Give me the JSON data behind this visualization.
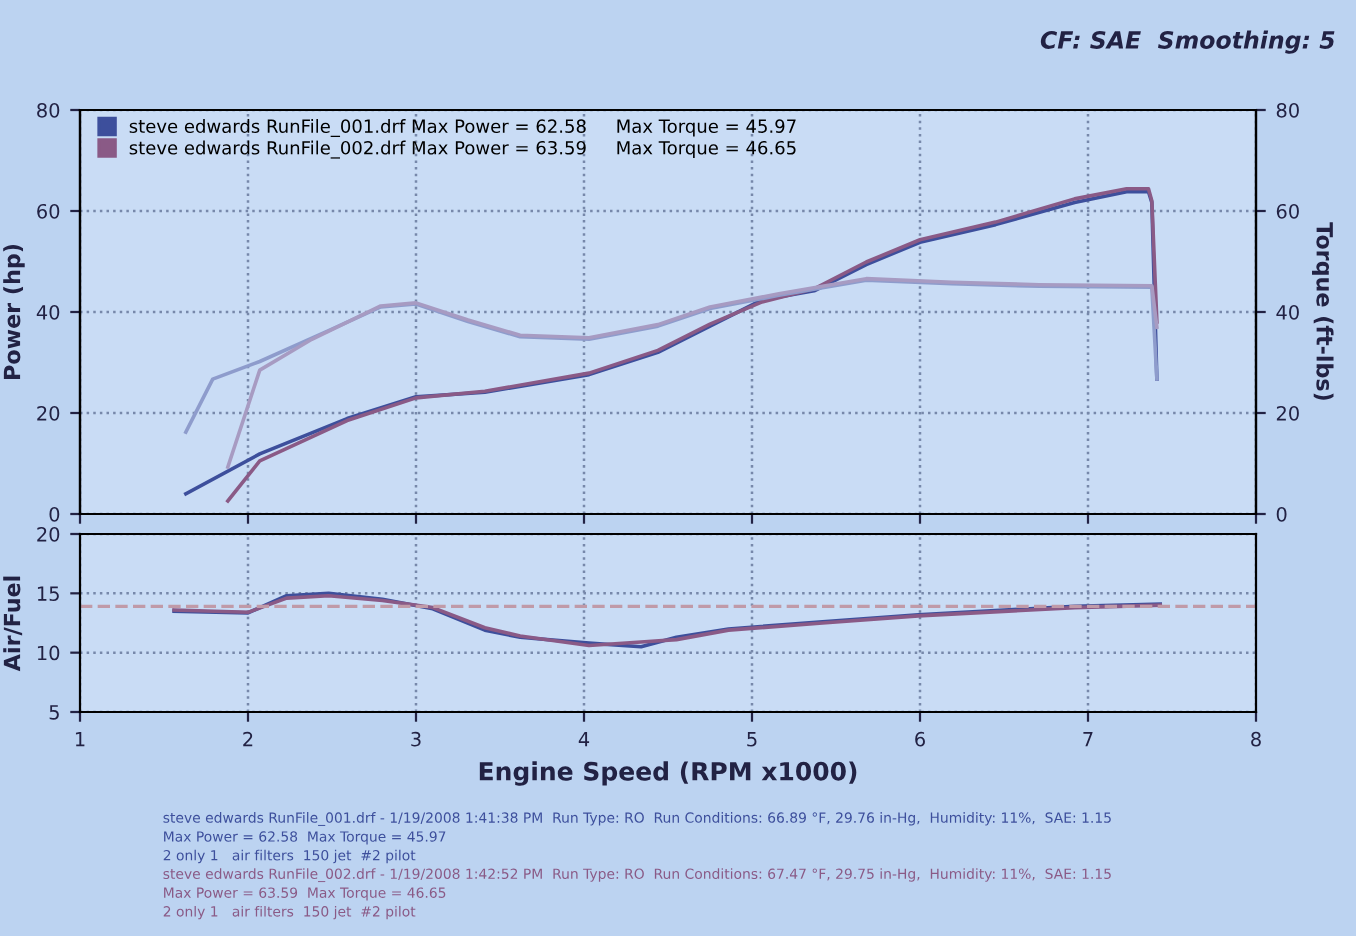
{
  "chart_data": [
    {
      "type": "line",
      "annotations": [
        "CF: SAE  Smoothing: 5"
      ],
      "ylabel": "Power (hp)",
      "y2label": "Torque (ft-lbs)",
      "xlim": [
        1,
        8
      ],
      "xticks": [
        1,
        2,
        3,
        4,
        5,
        6,
        7,
        8
      ],
      "ylim": [
        0,
        80
      ],
      "yticks": [
        0,
        20,
        40,
        60,
        80
      ],
      "y2lim": [
        0,
        80
      ],
      "y2ticks": [
        0,
        20,
        40,
        60,
        80
      ],
      "tick_labels": "y",
      "grid": true,
      "legend": "top left",
      "series": [
        {
          "name": "steve edwards RunFile_001.drf Max Power = 62.58     Max Torque = 45.97",
          "color": "#3d4f9c",
          "x": [
            1.63,
            2.07,
            2.59,
            3.0,
            3.41,
            4.03,
            4.44,
            4.75,
            5.06,
            5.37,
            5.68,
            6.0,
            6.45,
            6.92,
            7.23,
            7.36,
            7.38,
            7.41
          ],
          "values": [
            4.0,
            11.9,
            18.9,
            23.2,
            24.1,
            27.6,
            32.0,
            37.2,
            42.4,
            44.2,
            49.4,
            53.8,
            57.3,
            61.7,
            63.8,
            63.8,
            61.7,
            26.7
          ]
        },
        {
          "name": "steve edwards RunFile_002.drf Max Power = 63.59     Max Torque = 46.65",
          "color": "#8a5a86",
          "x": [
            1.88,
            2.07,
            2.59,
            3.0,
            3.41,
            4.03,
            4.44,
            4.75,
            5.06,
            5.37,
            5.68,
            6.0,
            6.45,
            6.92,
            7.23,
            7.36,
            7.38,
            7.41
          ],
          "values": [
            2.6,
            10.5,
            18.5,
            23.0,
            24.3,
            27.9,
            32.4,
            37.6,
            42.0,
            44.6,
            49.9,
            54.3,
            57.8,
            62.4,
            64.4,
            64.4,
            62.0,
            38.0
          ]
        },
        {
          "axis": "y2",
          "color": "#8e9ccc",
          "x": [
            1.63,
            1.79,
            2.07,
            2.48,
            2.79,
            3.0,
            3.31,
            3.62,
            4.03,
            4.44,
            4.75,
            5.16,
            5.68,
            6.19,
            6.71,
            7.38,
            7.41
          ],
          "values": [
            16.2,
            26.7,
            30.2,
            36.3,
            41.0,
            41.6,
            38.1,
            35.1,
            34.6,
            37.2,
            40.7,
            43.3,
            46.3,
            45.6,
            45.1,
            44.9,
            26.7
          ]
        },
        {
          "axis": "y2",
          "color": "#a79bc2",
          "x": [
            1.88,
            2.07,
            2.38,
            2.79,
            3.0,
            3.31,
            3.62,
            4.03,
            4.44,
            4.75,
            5.16,
            5.68,
            6.19,
            6.71,
            7.38,
            7.41
          ],
          "values": [
            9.3,
            28.5,
            34.6,
            41.2,
            41.8,
            38.4,
            35.4,
            34.9,
            37.5,
            41.0,
            43.6,
            46.6,
            45.9,
            45.4,
            45.2,
            37.0
          ]
        }
      ]
    },
    {
      "type": "line",
      "xlabel": "Engine Speed (RPM x1000)",
      "ylabel": "Air/Fuel",
      "xlim": [
        1,
        8
      ],
      "xticks": [
        1,
        2,
        3,
        4,
        5,
        6,
        7,
        8
      ],
      "ylim": [
        5,
        20
      ],
      "yticks": [
        5,
        10,
        15,
        20
      ],
      "grid": true,
      "ref_lines": [
        {
          "axis": "y",
          "value": 13.9,
          "color": "#c09aa8",
          "line_style": "dashed"
        }
      ],
      "annotations": [
        "steve edwards RunFile_001.drf - 1/19/2008 1:41:38 PM  Run Type: RO  Run Conditions: 66.89 °F, 29.76 in-Hg,  Humidity: 11%,  SAE: 1.15",
        "Max Power = 62.58  Max Torque = 45.97",
        "2 only 1   air filters  150 jet  #2 pilot",
        "steve edwards RunFile_002.drf - 1/19/2008 1:42:52 PM  Run Type: RO  Run Conditions: 67.47 °F, 29.75 in-Hg,  Humidity: 11%,  SAE: 1.15",
        "Max Power = 63.59  Max Torque = 46.65",
        "2 only 1   air filters  150 jet  #2 pilot"
      ],
      "series": [
        {
          "color": "#3d4f9c",
          "x": [
            1.56,
            2.0,
            2.23,
            2.48,
            2.8,
            3.1,
            3.41,
            3.62,
            4.03,
            4.34,
            4.55,
            4.86,
            5.42,
            5.99,
            6.92,
            7.43
          ],
          "values": [
            13.5,
            13.35,
            14.8,
            15.0,
            14.5,
            13.7,
            11.9,
            11.3,
            10.8,
            10.5,
            11.3,
            12.0,
            12.6,
            13.2,
            13.9,
            14.1
          ]
        },
        {
          "color": "#8a5a86",
          "x": [
            1.56,
            2.0,
            2.23,
            2.48,
            2.8,
            3.1,
            3.41,
            3.62,
            4.03,
            4.34,
            4.55,
            4.86,
            5.42,
            5.99,
            6.92,
            7.43
          ],
          "values": [
            13.6,
            13.4,
            14.6,
            14.8,
            14.4,
            13.8,
            12.1,
            11.4,
            10.6,
            10.9,
            11.1,
            11.9,
            12.5,
            13.1,
            13.8,
            14.0
          ]
        }
      ]
    }
  ]
}
